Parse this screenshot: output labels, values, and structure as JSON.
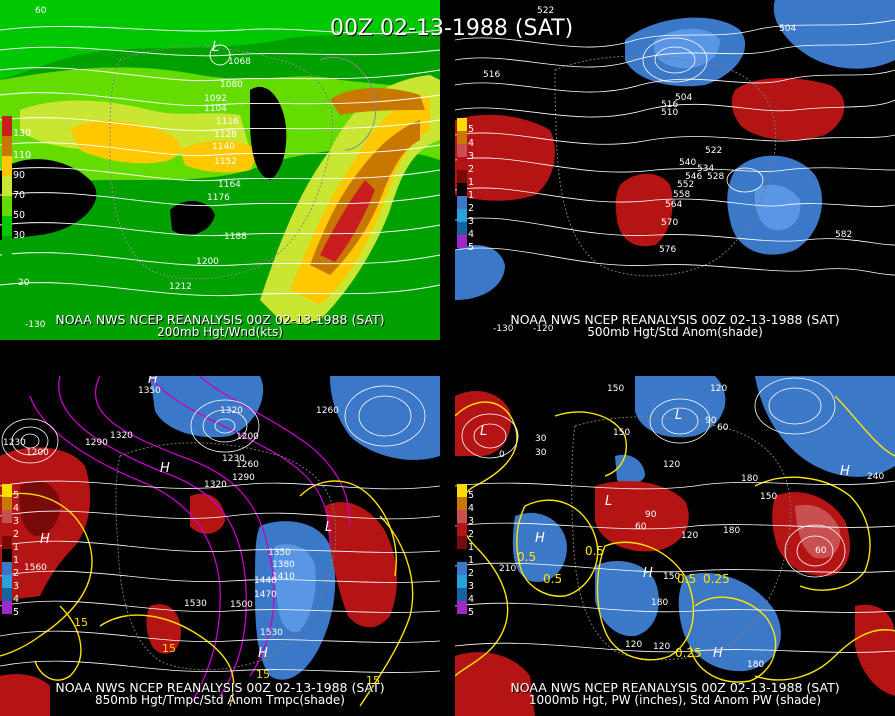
{
  "title": "00Z 02-13-1988 (SAT)",
  "panels": [
    {
      "id": "p1",
      "line1": "NOAA NWS NCEP REANALYSIS 00Z 02-13-1988 (SAT)",
      "line2": "200mb Hgt/Wnd(kts)",
      "colorbar_labels": [
        "130",
        "110",
        "90",
        "70",
        "50",
        "30"
      ],
      "contour_labels": [
        "1068",
        "1080",
        "1092",
        "1104",
        "1116",
        "1128",
        "1140",
        "1152",
        "1164",
        "1176",
        "1188",
        "1200",
        "1212"
      ],
      "low_marker": "L",
      "corner_numbers": [
        "60",
        "-130",
        "-120",
        "20",
        "20"
      ],
      "colors": {
        "c30": "#00a000",
        "c50": "#00c800",
        "c70": "#64dc00",
        "c90": "#c8e632",
        "c110": "#ffc800",
        "c130": "#c87800",
        "c150": "#c81e1e"
      }
    },
    {
      "id": "p2",
      "line1": "NOAA NWS NCEP REANALYSIS 00Z 02-13-1988 (SAT)",
      "line2": "500mb Hgt/Std Anom(shade)",
      "colorbar_labels": [
        "5",
        "4",
        "3",
        "2",
        "1",
        "1",
        "2",
        "3",
        "4",
        "5"
      ],
      "contour_labels": [
        "522",
        "516",
        "504",
        "516",
        "510",
        "522",
        "540",
        "534",
        "528",
        "546",
        "552",
        "558",
        "564",
        "570",
        "576",
        "582",
        "504"
      ],
      "corner_numbers": [
        "-130",
        "-120"
      ],
      "colors": {
        "pos": "#b41414",
        "neg": "#3c78c8"
      }
    },
    {
      "id": "p3",
      "line1": "NOAA NWS NCEP REANALYSIS 00Z 02-13-1988 (SAT)",
      "line2": "850mb Hgt/Tmpc/Std Anom Tmpc(shade)",
      "colorbar_labels": [
        "5",
        "4",
        "3",
        "2",
        "1",
        "1",
        "2",
        "3",
        "4",
        "5"
      ],
      "contour_labels": [
        "1350",
        "1320",
        "1290",
        "1230",
        "1200",
        "1320",
        "1260",
        "1290",
        "1320",
        "1230",
        "1200",
        "1260",
        "1380",
        "1350",
        "1410",
        "1440",
        "1470",
        "1500",
        "1530",
        "1560",
        "1530"
      ],
      "temp_labels": [
        "15",
        "15",
        "15",
        "15"
      ],
      "high_marker": "H",
      "low_marker": "L",
      "colors": {
        "pos": "#b41414",
        "neg": "#3c78c8",
        "temp": "#c800c8",
        "warm": "#ffdc00"
      }
    },
    {
      "id": "p4",
      "line1": "NOAA NWS NCEP REANALYSIS 00Z 02-13-1988 (SAT)",
      "line2": "1000mb Hgt, PW (inches), Std Anom PW (shade)",
      "colorbar_labels": [
        "5",
        "4",
        "3",
        "2",
        "1",
        "1",
        "2",
        "3",
        "4",
        "5"
      ],
      "contour_labels": [
        "150",
        "120",
        "90",
        "60",
        "30",
        "0",
        "150",
        "120",
        "180",
        "210",
        "240",
        "180",
        "150",
        "60",
        "90",
        "120",
        "180",
        "150",
        "120",
        "60",
        "30",
        "180",
        "120"
      ],
      "pw_labels": [
        "0.5",
        "0.5",
        "0.5",
        "0.5",
        "0.25",
        "0.25",
        "0.5",
        "0.25"
      ],
      "high_marker": "H",
      "low_marker": "L",
      "colors": {
        "pos": "#b41414",
        "neg": "#3c78c8",
        "pw": "#ffe600"
      }
    }
  ]
}
